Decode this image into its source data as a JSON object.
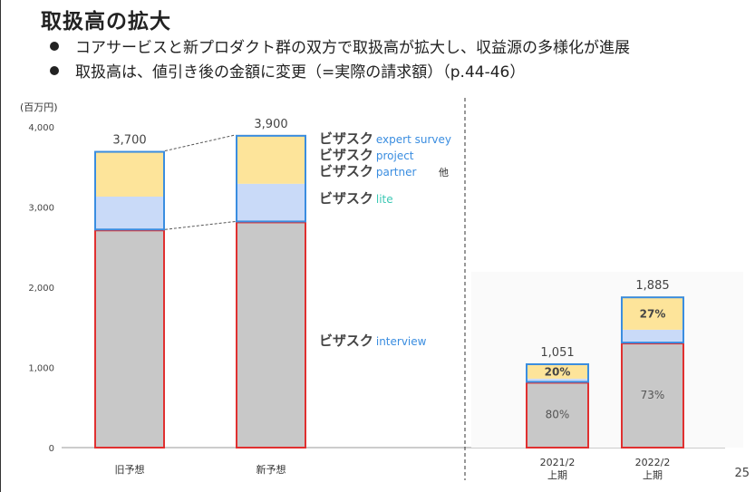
{
  "page": {
    "title": "取扱高の拡大",
    "bullets": [
      "コアサービスと新プロダクト群の双方で取扱高が拡大し、収益源の多様化が進展",
      "取扱高は、値引き後の金額に変更（=実際の請求額）（p.44-46）"
    ],
    "page_number": "25"
  },
  "colors": {
    "interview_fill": "#c8c8c8",
    "interview_border": "#e03030",
    "lite_fill": "#c9daf8",
    "other_fill": "#fde49a",
    "upper_border": "#3a8de0",
    "brand_blue": "#3a8de0",
    "lite_green": "#3cc8b4"
  },
  "chart_data": {
    "type": "bar",
    "stacked": true,
    "unit_label": "(百万円)",
    "ylim": [
      0,
      4000
    ],
    "yticks": [
      "0",
      "1,000",
      "2,000",
      "3,000",
      "4,000"
    ],
    "ytick_values": [
      0,
      1000,
      2000,
      3000,
      4000
    ],
    "categories": [
      {
        "label": [
          "旧予想"
        ],
        "total": 3700,
        "total_label": "3,700",
        "interview": 2720,
        "lite": 410,
        "other": 570
      },
      {
        "label": [
          "新予想"
        ],
        "total": 3900,
        "total_label": "3,900",
        "interview": 2820,
        "lite": 470,
        "other": 610
      },
      {
        "label": [
          "2021/2",
          "上期"
        ],
        "total": 1051,
        "total_label": "1,051",
        "interview": 820,
        "lite": 40,
        "other": 191,
        "interview_pct": "80%",
        "other_pct": "20%"
      },
      {
        "label": [
          "2022/2",
          "上期"
        ],
        "total": 1885,
        "total_label": "1,885",
        "interview": 1310,
        "lite": 160,
        "other": 415,
        "interview_pct": "73%",
        "other_pct": "27%"
      }
    ],
    "legend": [
      {
        "brand": "ビザスク",
        "sub": "expert survey",
        "segment": "other"
      },
      {
        "brand": "ビザスク",
        "sub": "project",
        "segment": "other"
      },
      {
        "brand": "ビザスク",
        "sub": "partner",
        "suffix": "他",
        "segment": "other"
      },
      {
        "brand": "ビザスク",
        "sub": "lite",
        "segment": "lite"
      },
      {
        "brand": "ビザスク",
        "sub": "interview",
        "segment": "interview"
      }
    ]
  }
}
